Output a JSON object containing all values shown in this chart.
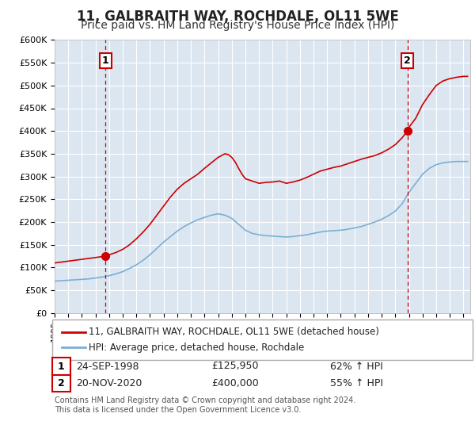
{
  "title": "11, GALBRAITH WAY, ROCHDALE, OL11 5WE",
  "subtitle": "Price paid vs. HM Land Registry's House Price Index (HPI)",
  "title_fontsize": 12,
  "subtitle_fontsize": 10,
  "background_color": "#ffffff",
  "plot_bg_color": "#dce6f1",
  "grid_color": "#ffffff",
  "ylabel_ticks": [
    "£0",
    "£50K",
    "£100K",
    "£150K",
    "£200K",
    "£250K",
    "£300K",
    "£350K",
    "£400K",
    "£450K",
    "£500K",
    "£550K",
    "£600K"
  ],
  "ytick_values": [
    0,
    50000,
    100000,
    150000,
    200000,
    250000,
    300000,
    350000,
    400000,
    450000,
    500000,
    550000,
    600000
  ],
  "hpi_color": "#7bafd4",
  "price_color": "#cc0000",
  "purchase1_date": 1998.73,
  "purchase1_price": 125950,
  "purchase2_date": 2020.89,
  "purchase2_price": 400000,
  "vline_color": "#cc0000",
  "marker_color": "#cc0000",
  "legend_line1": "11, GALBRAITH WAY, ROCHDALE, OL11 5WE (detached house)",
  "legend_line2": "HPI: Average price, detached house, Rochdale",
  "note1_date": "24-SEP-1998",
  "note1_price": "£125,950",
  "note1_hpi": "62% ↑ HPI",
  "note2_date": "20-NOV-2020",
  "note2_price": "£400,000",
  "note2_hpi": "55% ↑ HPI",
  "footer": "Contains HM Land Registry data © Crown copyright and database right 2024.\nThis data is licensed under the Open Government Licence v3.0.",
  "xmin": 1995.0,
  "xmax": 2025.5,
  "ymin": 0,
  "ymax": 600000,
  "red_x": [
    1995.0,
    1995.5,
    1996.0,
    1996.5,
    1997.0,
    1997.5,
    1998.0,
    1998.5,
    1998.73,
    1999.0,
    1999.5,
    2000.0,
    2000.5,
    2001.0,
    2001.5,
    2002.0,
    2002.5,
    2003.0,
    2003.5,
    2004.0,
    2004.5,
    2005.0,
    2005.5,
    2006.0,
    2006.5,
    2007.0,
    2007.5,
    2007.75,
    2008.0,
    2008.25,
    2008.5,
    2008.75,
    2009.0,
    2009.5,
    2010.0,
    2010.5,
    2011.0,
    2011.5,
    2012.0,
    2012.5,
    2013.0,
    2013.5,
    2014.0,
    2014.5,
    2015.0,
    2015.5,
    2016.0,
    2016.5,
    2017.0,
    2017.5,
    2018.0,
    2018.5,
    2019.0,
    2019.5,
    2020.0,
    2020.5,
    2020.89,
    2021.0,
    2021.5,
    2022.0,
    2022.5,
    2023.0,
    2023.5,
    2024.0,
    2024.5,
    2025.0,
    2025.3
  ],
  "red_y": [
    110000,
    112000,
    114000,
    116000,
    118000,
    120000,
    122000,
    124000,
    125950,
    128000,
    133000,
    140000,
    150000,
    163000,
    178000,
    195000,
    215000,
    235000,
    255000,
    272000,
    285000,
    295000,
    305000,
    318000,
    330000,
    342000,
    350000,
    348000,
    342000,
    332000,
    318000,
    305000,
    295000,
    290000,
    285000,
    287000,
    288000,
    290000,
    285000,
    288000,
    292000,
    298000,
    305000,
    312000,
    316000,
    320000,
    323000,
    328000,
    333000,
    338000,
    342000,
    346000,
    352000,
    360000,
    370000,
    385000,
    400000,
    408000,
    428000,
    458000,
    480000,
    500000,
    510000,
    515000,
    518000,
    520000,
    520000
  ],
  "blue_x": [
    1995.0,
    1995.5,
    1996.0,
    1996.5,
    1997.0,
    1997.5,
    1998.0,
    1998.5,
    1999.0,
    1999.5,
    2000.0,
    2000.5,
    2001.0,
    2001.5,
    2002.0,
    2002.5,
    2003.0,
    2003.5,
    2004.0,
    2004.5,
    2005.0,
    2005.5,
    2006.0,
    2006.5,
    2007.0,
    2007.5,
    2008.0,
    2008.5,
    2009.0,
    2009.5,
    2010.0,
    2010.5,
    2011.0,
    2011.5,
    2012.0,
    2012.5,
    2013.0,
    2013.5,
    2014.0,
    2014.5,
    2015.0,
    2015.5,
    2016.0,
    2016.5,
    2017.0,
    2017.5,
    2018.0,
    2018.5,
    2019.0,
    2019.5,
    2020.0,
    2020.5,
    2021.0,
    2021.5,
    2022.0,
    2022.5,
    2023.0,
    2023.5,
    2024.0,
    2024.5,
    2025.0,
    2025.3
  ],
  "blue_y": [
    70000,
    71000,
    72000,
    73000,
    74000,
    75000,
    77000,
    79000,
    82000,
    86000,
    91000,
    98000,
    106000,
    116000,
    128000,
    142000,
    156000,
    168000,
    180000,
    190000,
    198000,
    205000,
    210000,
    215000,
    218000,
    215000,
    208000,
    195000,
    182000,
    175000,
    172000,
    170000,
    169000,
    168000,
    167000,
    168000,
    170000,
    172000,
    175000,
    178000,
    180000,
    181000,
    182000,
    184000,
    187000,
    190000,
    195000,
    200000,
    206000,
    214000,
    224000,
    240000,
    265000,
    285000,
    305000,
    318000,
    326000,
    330000,
    332000,
    333000,
    333000,
    333000
  ]
}
